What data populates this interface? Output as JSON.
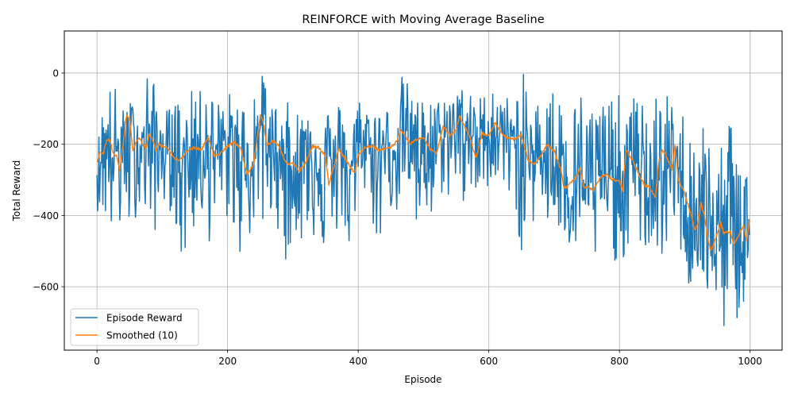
{
  "chart_data": {
    "type": "line",
    "title": "REINFORCE with Moving Average Baseline",
    "xlabel": "Episode",
    "ylabel": "Total Reward",
    "xlim": [
      -50,
      1049
    ],
    "ylim": [
      -778,
      118
    ],
    "xticks": [
      0,
      200,
      400,
      600,
      800,
      1000
    ],
    "yticks": [
      0,
      -200,
      -400,
      -600
    ],
    "grid": true,
    "legend_position": "lower-left",
    "series": [
      {
        "name": "Episode Reward",
        "color": "#1f77b4",
        "envelope": [
          [
            0,
            -260,
            -215,
            -385
          ],
          [
            10,
            -210,
            -60,
            -410
          ],
          [
            20,
            -230,
            -20,
            -445
          ],
          [
            30,
            -220,
            -35,
            -520
          ],
          [
            40,
            -210,
            -100,
            -400
          ],
          [
            50,
            -150,
            -80,
            -460
          ],
          [
            60,
            -190,
            -80,
            -400
          ],
          [
            70,
            -190,
            -160,
            -360
          ],
          [
            80,
            -160,
            82,
            -510
          ],
          [
            90,
            -220,
            -75,
            -440
          ],
          [
            100,
            -210,
            -90,
            -360
          ],
          [
            110,
            -230,
            -100,
            -380
          ],
          [
            120,
            -210,
            -60,
            -420
          ],
          [
            130,
            -250,
            -90,
            -590
          ],
          [
            140,
            -220,
            -100,
            -460
          ],
          [
            150,
            -200,
            0,
            -450
          ],
          [
            160,
            -210,
            -60,
            -420
          ],
          [
            170,
            -180,
            -5,
            -470
          ],
          [
            180,
            -230,
            -80,
            -510
          ],
          [
            190,
            -230,
            -70,
            -400
          ],
          [
            200,
            -200,
            -50,
            -420
          ],
          [
            210,
            -210,
            -60,
            -460
          ],
          [
            220,
            -230,
            -80,
            -520
          ],
          [
            230,
            -260,
            -70,
            -480
          ],
          [
            240,
            -250,
            5,
            -450
          ],
          [
            250,
            -150,
            -10,
            -400
          ],
          [
            260,
            -190,
            8,
            -525
          ],
          [
            270,
            -210,
            -90,
            -360
          ],
          [
            280,
            -230,
            -80,
            -470
          ],
          [
            290,
            -240,
            -80,
            -615
          ],
          [
            300,
            -270,
            -90,
            -400
          ],
          [
            310,
            -260,
            -100,
            -500
          ],
          [
            320,
            -220,
            -80,
            -460
          ],
          [
            330,
            -220,
            -40,
            -450
          ],
          [
            340,
            -230,
            -70,
            -520
          ],
          [
            350,
            -200,
            -80,
            -520
          ],
          [
            360,
            -280,
            -110,
            -480
          ],
          [
            370,
            -240,
            -80,
            -440
          ],
          [
            380,
            -260,
            -80,
            -470
          ],
          [
            390,
            -270,
            -90,
            -530
          ],
          [
            395,
            -230,
            -100,
            -618
          ],
          [
            400,
            -220,
            -60,
            -450
          ],
          [
            410,
            -200,
            -80,
            -340
          ],
          [
            420,
            -210,
            -80,
            -380
          ],
          [
            430,
            -220,
            -90,
            -560
          ],
          [
            440,
            -210,
            -100,
            -350
          ],
          [
            450,
            -220,
            -80,
            -380
          ],
          [
            460,
            -200,
            -60,
            -400
          ],
          [
            470,
            -160,
            18,
            -360
          ],
          [
            480,
            -170,
            -70,
            -390
          ],
          [
            490,
            -180,
            -60,
            -475
          ],
          [
            500,
            -200,
            -80,
            -420
          ],
          [
            510,
            -210,
            -60,
            -450
          ],
          [
            520,
            -230,
            -80,
            -390
          ],
          [
            530,
            -180,
            -50,
            -330
          ],
          [
            540,
            -160,
            -60,
            -360
          ],
          [
            550,
            -160,
            -40,
            -300
          ],
          [
            555,
            -130,
            52,
            -320
          ],
          [
            560,
            -150,
            -50,
            -390
          ],
          [
            570,
            -160,
            -60,
            -380
          ],
          [
            580,
            -200,
            -60,
            -360
          ],
          [
            590,
            -170,
            -60,
            -410
          ],
          [
            600,
            -180,
            -50,
            -300
          ],
          [
            610,
            -160,
            8,
            -300
          ],
          [
            620,
            -170,
            -80,
            -340
          ],
          [
            630,
            -180,
            -60,
            -360
          ],
          [
            640,
            -200,
            -80,
            -340
          ],
          [
            650,
            -180,
            26,
            -570
          ],
          [
            660,
            -240,
            -70,
            -440
          ],
          [
            670,
            -230,
            -80,
            -420
          ],
          [
            680,
            -240,
            -60,
            -400
          ],
          [
            690,
            -200,
            12,
            -440
          ],
          [
            700,
            -220,
            -50,
            -430
          ],
          [
            710,
            -260,
            -60,
            -500
          ],
          [
            720,
            -300,
            -50,
            -480
          ],
          [
            730,
            -310,
            -80,
            -540
          ],
          [
            740,
            -290,
            -40,
            -500
          ],
          [
            750,
            -310,
            -80,
            -520
          ],
          [
            760,
            -330,
            -70,
            -560
          ],
          [
            770,
            -290,
            -80,
            -480
          ],
          [
            780,
            -280,
            -40,
            -580
          ],
          [
            790,
            -290,
            -80,
            -520
          ],
          [
            800,
            -320,
            -60,
            -550
          ],
          [
            810,
            -260,
            -80,
            -510
          ],
          [
            820,
            -240,
            -60,
            -480
          ],
          [
            830,
            -280,
            -80,
            -520
          ],
          [
            840,
            -300,
            -30,
            -500
          ],
          [
            850,
            -320,
            -20,
            -540
          ],
          [
            860,
            -300,
            -80,
            -550
          ],
          [
            870,
            -270,
            -60,
            -500
          ],
          [
            880,
            -260,
            -70,
            -570
          ],
          [
            890,
            -300,
            -120,
            -500
          ],
          [
            900,
            -340,
            -100,
            -520
          ],
          [
            905,
            -360,
            18,
            -600
          ],
          [
            910,
            -380,
            -140,
            -640
          ],
          [
            920,
            -420,
            -160,
            -580
          ],
          [
            925,
            -410,
            18,
            -560
          ],
          [
            930,
            -380,
            -200,
            -620
          ],
          [
            940,
            -440,
            -160,
            -700
          ],
          [
            950,
            -460,
            -240,
            -680
          ],
          [
            960,
            -450,
            -190,
            -730
          ],
          [
            970,
            -470,
            -75,
            -660
          ],
          [
            980,
            -450,
            -200,
            -700
          ],
          [
            990,
            -440,
            -180,
            -680
          ],
          [
            999,
            -420,
            -180,
            -742
          ]
        ]
      },
      {
        "name": "Smoothed (10)",
        "color": "#ff7f0e",
        "keypoints": [
          [
            0,
            -250
          ],
          [
            5,
            -220
          ],
          [
            10,
            -225
          ],
          [
            15,
            -185
          ],
          [
            20,
            -190
          ],
          [
            25,
            -225
          ],
          [
            30,
            -235
          ],
          [
            35,
            -270
          ],
          [
            40,
            -200
          ],
          [
            45,
            -120
          ],
          [
            50,
            -130
          ],
          [
            55,
            -220
          ],
          [
            60,
            -195
          ],
          [
            65,
            -180
          ],
          [
            70,
            -200
          ],
          [
            75,
            -210
          ],
          [
            80,
            -170
          ],
          [
            85,
            -185
          ],
          [
            90,
            -215
          ],
          [
            95,
            -200
          ],
          [
            100,
            -205
          ],
          [
            110,
            -215
          ],
          [
            120,
            -245
          ],
          [
            130,
            -240
          ],
          [
            135,
            -225
          ],
          [
            140,
            -215
          ],
          [
            150,
            -210
          ],
          [
            160,
            -215
          ],
          [
            170,
            -180
          ],
          [
            180,
            -235
          ],
          [
            190,
            -225
          ],
          [
            200,
            -205
          ],
          [
            210,
            -195
          ],
          [
            220,
            -210
          ],
          [
            225,
            -250
          ],
          [
            230,
            -285
          ],
          [
            240,
            -255
          ],
          [
            250,
            -120
          ],
          [
            255,
            -140
          ],
          [
            260,
            -200
          ],
          [
            270,
            -190
          ],
          [
            280,
            -210
          ],
          [
            290,
            -255
          ],
          [
            300,
            -255
          ],
          [
            310,
            -275
          ],
          [
            320,
            -250
          ],
          [
            330,
            -205
          ],
          [
            340,
            -210
          ],
          [
            350,
            -235
          ],
          [
            355,
            -315
          ],
          [
            360,
            -280
          ],
          [
            370,
            -215
          ],
          [
            380,
            -240
          ],
          [
            390,
            -270
          ],
          [
            395,
            -280
          ],
          [
            400,
            -230
          ],
          [
            410,
            -210
          ],
          [
            420,
            -205
          ],
          [
            430,
            -215
          ],
          [
            440,
            -215
          ],
          [
            450,
            -210
          ],
          [
            460,
            -190
          ],
          [
            465,
            -160
          ],
          [
            470,
            -170
          ],
          [
            480,
            -200
          ],
          [
            490,
            -185
          ],
          [
            500,
            -180
          ],
          [
            510,
            -215
          ],
          [
            520,
            -225
          ],
          [
            530,
            -150
          ],
          [
            540,
            -175
          ],
          [
            550,
            -160
          ],
          [
            555,
            -120
          ],
          [
            560,
            -140
          ],
          [
            570,
            -175
          ],
          [
            580,
            -240
          ],
          [
            590,
            -170
          ],
          [
            600,
            -175
          ],
          [
            610,
            -140
          ],
          [
            620,
            -170
          ],
          [
            630,
            -185
          ],
          [
            640,
            -185
          ],
          [
            650,
            -175
          ],
          [
            660,
            -245
          ],
          [
            670,
            -255
          ],
          [
            680,
            -230
          ],
          [
            690,
            -200
          ],
          [
            700,
            -220
          ],
          [
            710,
            -270
          ],
          [
            715,
            -320
          ],
          [
            720,
            -320
          ],
          [
            730,
            -300
          ],
          [
            740,
            -270
          ],
          [
            745,
            -320
          ],
          [
            750,
            -320
          ],
          [
            760,
            -330
          ],
          [
            770,
            -295
          ],
          [
            780,
            -285
          ],
          [
            790,
            -300
          ],
          [
            800,
            -305
          ],
          [
            805,
            -330
          ],
          [
            810,
            -215
          ],
          [
            820,
            -245
          ],
          [
            830,
            -285
          ],
          [
            840,
            -320
          ],
          [
            845,
            -315
          ],
          [
            855,
            -350
          ],
          [
            860,
            -250
          ],
          [
            865,
            -215
          ],
          [
            870,
            -225
          ],
          [
            880,
            -270
          ],
          [
            885,
            -205
          ],
          [
            890,
            -300
          ],
          [
            900,
            -340
          ],
          [
            910,
            -400
          ],
          [
            915,
            -440
          ],
          [
            920,
            -425
          ],
          [
            925,
            -365
          ],
          [
            930,
            -400
          ],
          [
            935,
            -460
          ],
          [
            940,
            -500
          ],
          [
            950,
            -450
          ],
          [
            955,
            -420
          ],
          [
            960,
            -450
          ],
          [
            970,
            -445
          ],
          [
            975,
            -485
          ],
          [
            980,
            -465
          ],
          [
            990,
            -430
          ],
          [
            995,
            -470
          ],
          [
            999,
            -410
          ]
        ]
      }
    ]
  }
}
